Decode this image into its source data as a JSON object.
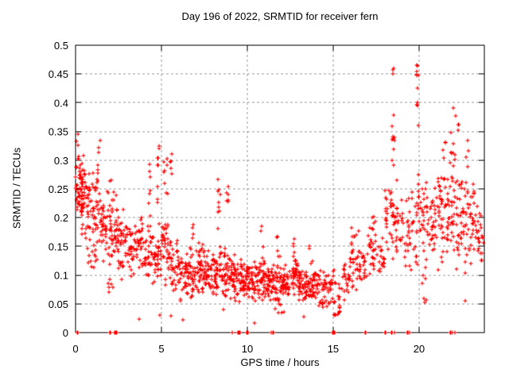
{
  "chart_data": {
    "type": "scatter",
    "title": "Day 196 of 2022, SRMTID for receiver fern",
    "xlabel": "GPS time / hours",
    "ylabel": "SRMTID / TECUs",
    "xlim": [
      0,
      23.8
    ],
    "ylim": [
      0,
      0.5
    ],
    "x_ticks": [
      0,
      5,
      10,
      15,
      20
    ],
    "x_tick_labels": [
      "0",
      "5",
      "10",
      "15",
      "20"
    ],
    "y_ticks": [
      0,
      0.05,
      0.1,
      0.15,
      0.2,
      0.25,
      0.3,
      0.35,
      0.4,
      0.45,
      0.5
    ],
    "y_tick_labels": [
      "0",
      "0.05",
      "0.1",
      "0.15",
      "0.2",
      "0.25",
      "0.3",
      "0.35",
      "0.4",
      "0.45",
      "0.5"
    ],
    "grid": true,
    "legend": "none",
    "marker": {
      "shape": "plus",
      "color": "#ff0000",
      "size": 5
    },
    "seed": 196,
    "cluster_fields": [
      "x_start",
      "x_end",
      "y_min",
      "y_max",
      "count",
      "y_distribution"
    ],
    "clusters": [
      [
        0.0,
        0.45,
        0.19,
        0.31,
        55,
        "mid"
      ],
      [
        0.0,
        0.2,
        0.3,
        0.35,
        6,
        "uniform"
      ],
      [
        0.3,
        1.0,
        0.15,
        0.3,
        50,
        "mid"
      ],
      [
        0.6,
        1.2,
        0.1,
        0.15,
        10,
        "uniform"
      ],
      [
        1.0,
        1.5,
        0.12,
        0.3,
        46,
        "mid"
      ],
      [
        1.3,
        1.45,
        0.28,
        0.335,
        5,
        "uniform"
      ],
      [
        1.5,
        2.0,
        0.12,
        0.25,
        40,
        "mid"
      ],
      [
        1.7,
        2.2,
        0.07,
        0.1,
        6,
        "uniform"
      ],
      [
        2.0,
        2.5,
        0.1,
        0.23,
        36,
        "mid"
      ],
      [
        2.0,
        2.5,
        0.23,
        0.265,
        6,
        "uniform"
      ],
      [
        2.5,
        3.0,
        0.09,
        0.22,
        36,
        "mid"
      ],
      [
        3.0,
        3.5,
        0.08,
        0.2,
        32,
        "mid"
      ],
      [
        3.5,
        4.0,
        0.1,
        0.22,
        36,
        "mid"
      ],
      [
        4.0,
        4.5,
        0.08,
        0.2,
        32,
        "mid"
      ],
      [
        4.25,
        4.38,
        0.2,
        0.31,
        7,
        "uniform"
      ],
      [
        4.5,
        5.0,
        0.07,
        0.2,
        36,
        "mid"
      ],
      [
        4.7,
        4.9,
        0.22,
        0.33,
        9,
        "uniform"
      ],
      [
        5.0,
        5.5,
        0.08,
        0.22,
        36,
        "mid"
      ],
      [
        5.15,
        5.35,
        0.24,
        0.31,
        8,
        "uniform"
      ],
      [
        5.45,
        5.6,
        0.27,
        0.315,
        5,
        "uniform"
      ],
      [
        5.5,
        6.0,
        0.06,
        0.18,
        36,
        "mid"
      ],
      [
        6.0,
        6.5,
        0.05,
        0.15,
        38,
        "mid"
      ],
      [
        6.5,
        7.0,
        0.05,
        0.16,
        38,
        "mid"
      ],
      [
        6.8,
        7.0,
        0.16,
        0.19,
        4,
        "uniform"
      ],
      [
        7.0,
        7.5,
        0.06,
        0.18,
        38,
        "mid"
      ],
      [
        7.5,
        8.0,
        0.05,
        0.15,
        38,
        "mid"
      ],
      [
        8.0,
        8.5,
        0.06,
        0.16,
        38,
        "mid"
      ],
      [
        8.25,
        8.45,
        0.16,
        0.28,
        10,
        "uniform"
      ],
      [
        8.5,
        9.0,
        0.05,
        0.15,
        40,
        "mid"
      ],
      [
        8.75,
        8.92,
        0.22,
        0.27,
        6,
        "uniform"
      ],
      [
        9.0,
        9.5,
        0.05,
        0.14,
        42,
        "mid"
      ],
      [
        9.5,
        10.0,
        0.05,
        0.13,
        42,
        "mid"
      ],
      [
        10.0,
        10.5,
        0.05,
        0.13,
        42,
        "mid"
      ],
      [
        10.5,
        11.0,
        0.05,
        0.13,
        42,
        "mid"
      ],
      [
        10.78,
        10.92,
        0.13,
        0.19,
        4,
        "uniform"
      ],
      [
        11.0,
        11.5,
        0.05,
        0.13,
        42,
        "mid"
      ],
      [
        11.5,
        12.0,
        0.05,
        0.13,
        42,
        "mid"
      ],
      [
        11.7,
        11.9,
        0.13,
        0.17,
        5,
        "uniform"
      ],
      [
        11.6,
        12.4,
        0.03,
        0.05,
        6,
        "uniform"
      ],
      [
        12.0,
        12.5,
        0.05,
        0.12,
        42,
        "mid"
      ],
      [
        12.5,
        13.0,
        0.06,
        0.13,
        42,
        "mid"
      ],
      [
        12.6,
        12.8,
        0.13,
        0.175,
        5,
        "uniform"
      ],
      [
        13.0,
        13.5,
        0.05,
        0.12,
        42,
        "mid"
      ],
      [
        13.5,
        14.0,
        0.05,
        0.12,
        38,
        "mid"
      ],
      [
        13.6,
        13.78,
        0.12,
        0.155,
        4,
        "uniform"
      ],
      [
        14.0,
        14.5,
        0.04,
        0.11,
        32,
        "mid"
      ],
      [
        14.5,
        15.0,
        0.04,
        0.11,
        28,
        "mid"
      ],
      [
        15.0,
        15.4,
        0.03,
        0.12,
        22,
        "low"
      ],
      [
        15.5,
        16.0,
        0.05,
        0.14,
        24,
        "mid"
      ],
      [
        16.0,
        16.5,
        0.06,
        0.19,
        30,
        "mid"
      ],
      [
        16.5,
        17.0,
        0.08,
        0.16,
        24,
        "mid"
      ],
      [
        17.0,
        17.5,
        0.09,
        0.22,
        30,
        "mid"
      ],
      [
        17.5,
        18.0,
        0.08,
        0.18,
        20,
        "mid"
      ],
      [
        18.0,
        18.5,
        0.1,
        0.3,
        30,
        "mid"
      ],
      [
        18.4,
        18.58,
        0.29,
        0.46,
        14,
        "uniform"
      ],
      [
        18.5,
        19.0,
        0.1,
        0.28,
        26,
        "mid"
      ],
      [
        19.0,
        19.5,
        0.08,
        0.25,
        24,
        "mid"
      ],
      [
        19.5,
        20.0,
        0.1,
        0.3,
        26,
        "mid"
      ],
      [
        19.8,
        19.98,
        0.42,
        0.48,
        7,
        "uniform"
      ],
      [
        19.82,
        19.96,
        0.34,
        0.41,
        4,
        "uniform"
      ],
      [
        20.0,
        20.5,
        0.1,
        0.28,
        30,
        "mid"
      ],
      [
        20.2,
        20.6,
        0.05,
        0.1,
        6,
        "uniform"
      ],
      [
        20.5,
        21.0,
        0.1,
        0.26,
        30,
        "mid"
      ],
      [
        21.0,
        21.5,
        0.1,
        0.3,
        36,
        "mid"
      ],
      [
        21.4,
        21.6,
        0.3,
        0.335,
        4,
        "uniform"
      ],
      [
        21.5,
        22.0,
        0.12,
        0.3,
        36,
        "mid"
      ],
      [
        21.85,
        22.55,
        0.3,
        0.395,
        12,
        "uniform"
      ],
      [
        22.0,
        22.5,
        0.1,
        0.3,
        36,
        "mid"
      ],
      [
        22.5,
        23.0,
        0.1,
        0.28,
        30,
        "mid"
      ],
      [
        22.6,
        22.9,
        0.28,
        0.335,
        4,
        "uniform"
      ],
      [
        23.0,
        23.4,
        0.12,
        0.27,
        24,
        "mid"
      ],
      [
        23.4,
        23.78,
        0.11,
        0.22,
        20,
        "mid"
      ]
    ],
    "outlier_points": [
      [
        3.7,
        0.023
      ],
      [
        4.9,
        0.03
      ],
      [
        5.55,
        0.029
      ],
      [
        6.25,
        0.022
      ],
      [
        8.6,
        0.04
      ],
      [
        10.4,
        0.016
      ],
      [
        13.27,
        0.028
      ],
      [
        22.7,
        0.055
      ]
    ],
    "zero_marker_x": [
      0.1,
      0.15,
      2.0,
      2.04,
      2.28,
      2.32,
      2.36,
      2.4,
      9.1,
      9.14,
      9.44,
      9.48,
      9.52,
      9.6,
      9.95,
      10.0,
      10.04,
      11.4,
      11.5,
      11.54,
      14.95,
      15.0,
      15.04,
      15.08,
      16.85,
      16.9,
      18.03,
      18.07,
      18.4,
      18.45,
      18.55,
      19.3,
      19.35,
      19.45,
      21.8,
      21.85,
      21.95,
      22.08
    ]
  },
  "colors": {
    "background": "#ffffff",
    "text": "#000000",
    "border": "#000000",
    "grid": "#a0a0a0",
    "marker": "#ff0000"
  }
}
